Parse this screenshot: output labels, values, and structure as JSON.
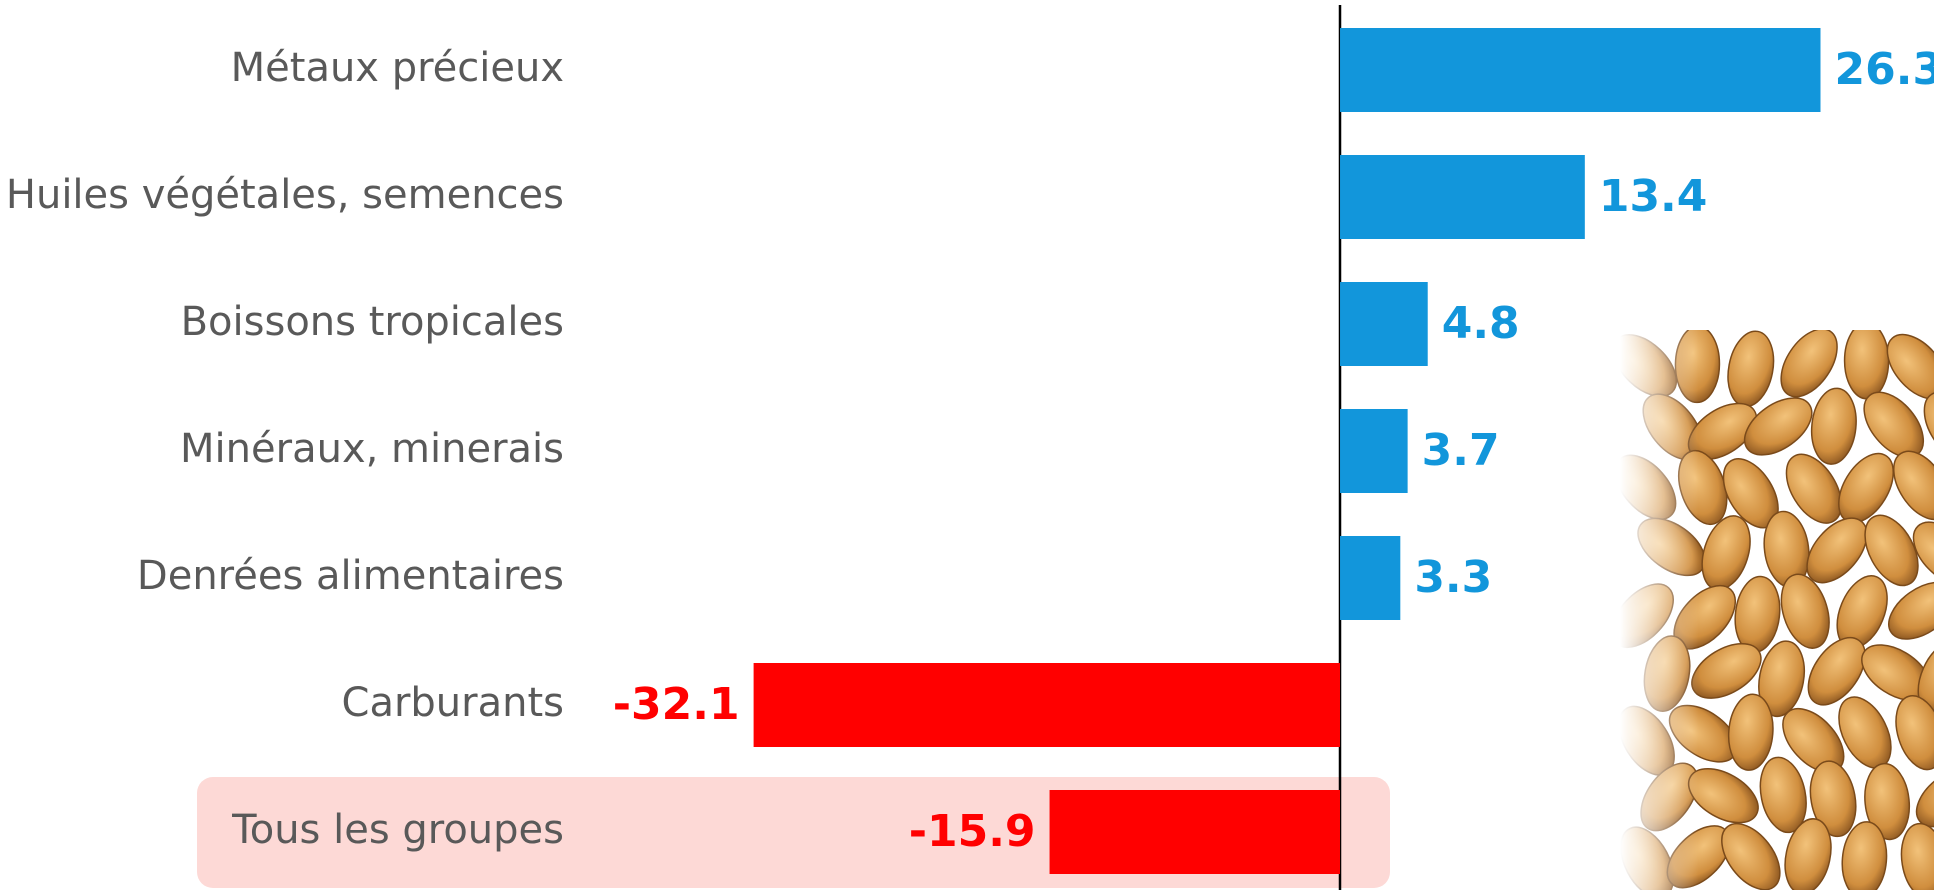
{
  "chart_data": {
    "type": "bar",
    "orientation": "horizontal",
    "categories": [
      "Métaux précieux",
      "Huiles végétales, semences",
      "Boissons tropicales",
      "Minéraux, minerais",
      "Denrées alimentaires",
      "Carburants",
      "Tous les groupes"
    ],
    "values": [
      26.3,
      13.4,
      4.8,
      3.7,
      3.3,
      -32.1,
      -15.9
    ],
    "color_positive": "#1296db",
    "color_negative": "#ff0000"
  }
}
